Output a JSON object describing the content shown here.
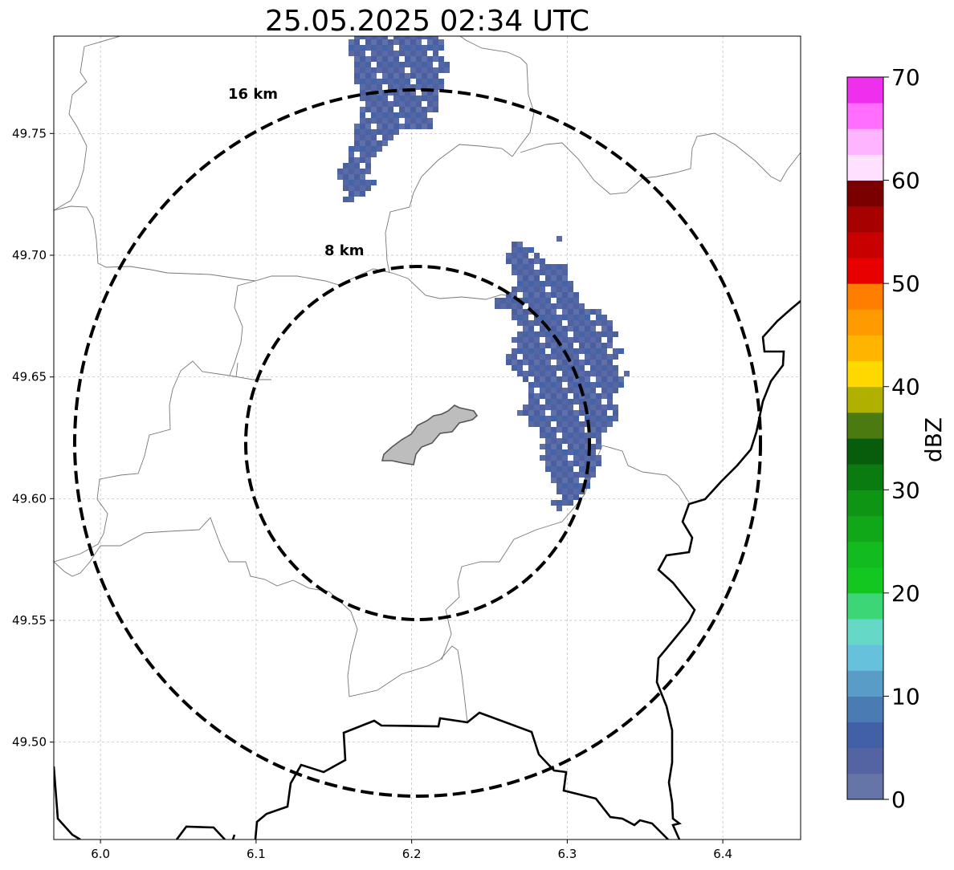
{
  "title": "25.05.2025 02:34 UTC",
  "map": {
    "x_ticks": [
      "6.0",
      "6.1",
      "6.2",
      "6.3",
      "6.4"
    ],
    "x_tick_values": [
      6.0,
      6.1,
      6.2,
      6.3,
      6.4
    ],
    "y_ticks": [
      "49.75",
      "49.70",
      "49.65",
      "49.60",
      "49.55",
      "49.50"
    ],
    "y_tick_values": [
      49.75,
      49.7,
      49.65,
      49.6,
      49.55,
      49.5
    ],
    "xlim": [
      5.97,
      6.45
    ],
    "ylim": [
      49.46,
      49.79
    ],
    "grid": true,
    "radar_center": [
      6.203,
      49.623
    ],
    "rings": [
      {
        "label": "16 km",
        "radius_km": 16
      },
      {
        "label": "8 km",
        "radius_km": 8
      }
    ],
    "colors": {
      "rings": "#000000",
      "borders_thin": "#777777",
      "borders_thick": "#000000",
      "city_fill": "#bdbdbd",
      "echo": "#4f61a0"
    }
  },
  "colorbar": {
    "label": "dBZ",
    "ticks": [
      "0",
      "10",
      "20",
      "30",
      "40",
      "50",
      "60",
      "70"
    ],
    "tick_values": [
      0,
      10,
      20,
      30,
      40,
      50,
      60,
      70
    ],
    "range": [
      0,
      70
    ],
    "colors": [
      "#6675a8",
      "#5464a2",
      "#4260a5",
      "#4a7cb3",
      "#5a9cc8",
      "#66c2dc",
      "#66d8c8",
      "#3dd676",
      "#12c820",
      "#12bb1e",
      "#10a718",
      "#0e9514",
      "#0a7b10",
      "#075d0c",
      "#4a7a10",
      "#b0b000",
      "#ffd800",
      "#ffb400",
      "#ff9a00",
      "#ff7e00",
      "#e80000",
      "#c80000",
      "#a60000",
      "#7a0000",
      "#ffe0ff",
      "#ffb4ff",
      "#ff6eff",
      "#ee30ee"
    ]
  }
}
